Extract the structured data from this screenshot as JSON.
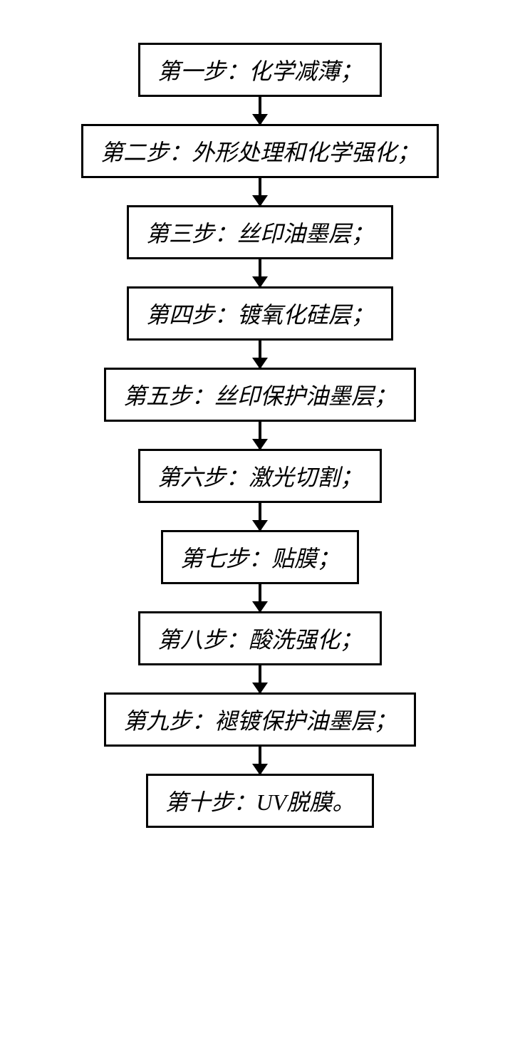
{
  "flowchart": {
    "type": "flowchart",
    "direction": "vertical",
    "nodes": [
      {
        "id": "step1",
        "label": "第一步：化学减薄；"
      },
      {
        "id": "step2",
        "label": "第二步：外形处理和化学强化；"
      },
      {
        "id": "step3",
        "label": "第三步：丝印油墨层；"
      },
      {
        "id": "step4",
        "label": "第四步：镀氧化硅层；"
      },
      {
        "id": "step5",
        "label": "第五步：丝印保护油墨层；"
      },
      {
        "id": "step6",
        "label": "第六步：激光切割；"
      },
      {
        "id": "step7",
        "label": "第七步：贴膜；"
      },
      {
        "id": "step8",
        "label": "第八步：酸洗强化；"
      },
      {
        "id": "step9",
        "label": "第九步：褪镀保护油墨层；"
      },
      {
        "id": "step10",
        "label": "第十步：UV脱膜。"
      }
    ],
    "edges": [
      {
        "from": "step1",
        "to": "step2"
      },
      {
        "from": "step2",
        "to": "step3"
      },
      {
        "from": "step3",
        "to": "step4"
      },
      {
        "from": "step4",
        "to": "step5"
      },
      {
        "from": "step5",
        "to": "step6"
      },
      {
        "from": "step6",
        "to": "step7"
      },
      {
        "from": "step7",
        "to": "step8"
      },
      {
        "from": "step8",
        "to": "step9"
      },
      {
        "from": "step9",
        "to": "step10"
      }
    ],
    "style": {
      "node_border_color": "#000000",
      "node_border_width": 3,
      "node_background": "#ffffff",
      "node_font_size": 32,
      "node_font_style": "italic",
      "node_font_family": "SimSun",
      "arrow_color": "#000000",
      "arrow_width": 4,
      "arrow_length": 38,
      "background_color": "#ffffff"
    }
  }
}
